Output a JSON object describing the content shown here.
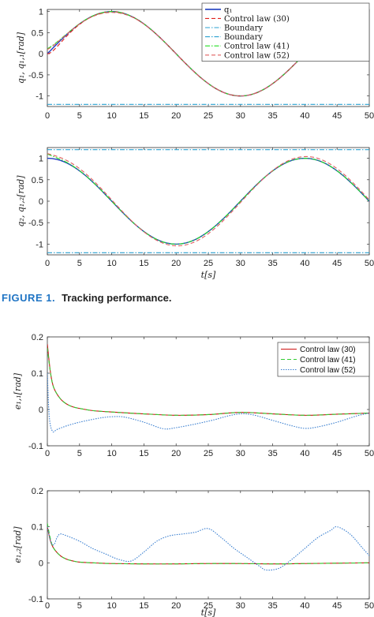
{
  "caption": {
    "number": "FIGURE 1.",
    "text": "Tracking performance."
  },
  "colors": {
    "desired": "#1f3fbf",
    "law30": "#e0201c",
    "boundary": "#2aa0d0",
    "law41": "#22dd22",
    "law52": "#e06060",
    "err30": "#cc1111",
    "err41": "#33cc33",
    "err52": "#3a7fd0"
  },
  "chart_data": [
    {
      "type": "line",
      "xlabel": "",
      "ylabel": "q₁, q₁,₁[rad]",
      "xlim": [
        0,
        50
      ],
      "ylim": [
        -1.25,
        1.05
      ],
      "xticks": [
        "0",
        "5",
        "10",
        "15",
        "20",
        "25",
        "30",
        "35",
        "40",
        "45",
        "50"
      ],
      "yticks": [
        "1",
        "0.5",
        "0",
        "-0.5",
        "-1"
      ],
      "yticks_values": [
        1,
        0.5,
        0,
        -0.5,
        -1
      ],
      "legend": [
        "q₁",
        "Control law (30)",
        "Boundary",
        "Boundary",
        "Control law (41)",
        "Control law (52)"
      ],
      "legend_position": "top-right",
      "series": [
        {
          "name": "q₁",
          "style": "solid",
          "color_key": "desired",
          "function": "sin(pi*t/20)"
        },
        {
          "name": "Control law (30)",
          "style": "dashed",
          "color_key": "law30",
          "function": "sin(pi*t/20), start 0.0"
        },
        {
          "name": "Boundary",
          "style": "dashdot",
          "color_key": "boundary",
          "x": [
            0,
            50
          ],
          "y": [
            -1.2,
            -1.2
          ]
        },
        {
          "name": "Boundary",
          "style": "dashdot",
          "color_key": "boundary",
          "x": [
            0,
            50
          ],
          "y": [
            1.2,
            1.2
          ]
        },
        {
          "name": "Control law (41)",
          "style": "dashdot",
          "color_key": "law41",
          "function": "sin(pi*t/20), start 0.12"
        },
        {
          "name": "Control law (52)",
          "style": "dashed",
          "color_key": "law52",
          "function": "sin(pi*t/20), start 0.1"
        }
      ]
    },
    {
      "type": "line",
      "xlabel": "t[s]",
      "ylabel": "q₂, q₁,₂[rad]",
      "xlim": [
        0,
        50
      ],
      "ylim": [
        -1.25,
        1.25
      ],
      "xticks": [
        "0",
        "5",
        "10",
        "15",
        "20",
        "25",
        "30",
        "35",
        "40",
        "45",
        "50"
      ],
      "yticks": [
        "1",
        "0.5",
        "0",
        "-0.5",
        "-1"
      ],
      "yticks_values": [
        1,
        0.5,
        0,
        -0.5,
        -1
      ],
      "series": [
        {
          "name": "q₂",
          "style": "solid",
          "color_key": "desired",
          "function": "cos(pi*t/20)"
        },
        {
          "name": "Boundary",
          "style": "dashdot",
          "color_key": "boundary",
          "x": [
            0,
            50
          ],
          "y": [
            1.2,
            1.2
          ]
        },
        {
          "name": "Boundary",
          "style": "dashdot",
          "color_key": "boundary",
          "x": [
            0,
            50
          ],
          "y": [
            -1.2,
            -1.2
          ]
        },
        {
          "name": "Control law (41)",
          "style": "dashdot",
          "color_key": "law41",
          "function": "cos(pi*t/20), start 1.1"
        },
        {
          "name": "Control law (52)",
          "style": "dashed",
          "color_key": "law52",
          "function": "cos(pi*t/20) with ~0.07 deviation near peaks"
        }
      ]
    },
    {
      "type": "line",
      "xlabel": "",
      "ylabel": "e₁,₁[rad]",
      "xlim": [
        0,
        50
      ],
      "ylim": [
        -0.1,
        0.2
      ],
      "xticks": [
        "0",
        "5",
        "10",
        "15",
        "20",
        "25",
        "30",
        "35",
        "40",
        "45",
        "50"
      ],
      "yticks": [
        "0.2",
        "0.1",
        "0",
        "-0.1"
      ],
      "yticks_values": [
        0.2,
        0.1,
        0,
        -0.1
      ],
      "legend": [
        "Control law (30)",
        "Control law (41)",
        "Control law (52)"
      ],
      "legend_position": "top-right",
      "series": [
        {
          "name": "Control law (30)",
          "style": "solid",
          "color_key": "err30",
          "x": [
            0,
            0.5,
            1,
            2,
            3,
            4,
            5,
            7,
            10,
            15,
            20,
            25,
            30,
            35,
            40,
            45,
            50
          ],
          "y": [
            0.18,
            0.1,
            0.06,
            0.03,
            0.015,
            0.007,
            0.003,
            -0.003,
            -0.007,
            -0.012,
            -0.016,
            -0.014,
            -0.008,
            -0.012,
            -0.016,
            -0.013,
            -0.01
          ]
        },
        {
          "name": "Control law (41)",
          "style": "dashed",
          "color_key": "err41",
          "x": [
            0,
            0.5,
            1,
            2,
            3,
            4,
            5,
            7,
            10,
            15,
            20,
            25,
            30,
            35,
            40,
            45,
            50
          ],
          "y": [
            0.17,
            0.1,
            0.06,
            0.03,
            0.015,
            0.007,
            0.003,
            -0.003,
            -0.007,
            -0.012,
            -0.016,
            -0.014,
            -0.008,
            -0.012,
            -0.016,
            -0.013,
            -0.01
          ]
        },
        {
          "name": "Control law (52)",
          "style": "dotted",
          "color_key": "err52",
          "x": [
            0,
            0.3,
            0.8,
            1.5,
            3,
            5,
            8,
            10,
            12,
            15,
            18,
            20,
            23,
            26,
            28,
            30,
            32,
            35,
            38,
            40,
            42,
            45,
            48,
            50
          ],
          "y": [
            0.1,
            -0.02,
            -0.06,
            -0.055,
            -0.045,
            -0.035,
            -0.024,
            -0.02,
            -0.021,
            -0.035,
            -0.053,
            -0.05,
            -0.04,
            -0.028,
            -0.018,
            -0.012,
            -0.015,
            -0.03,
            -0.045,
            -0.052,
            -0.048,
            -0.035,
            -0.018,
            -0.01
          ]
        }
      ]
    },
    {
      "type": "line",
      "xlabel": "t[s]",
      "ylabel": "e₁,₂[rad]",
      "xlim": [
        0,
        50
      ],
      "ylim": [
        -0.1,
        0.2
      ],
      "xticks": [
        "0",
        "5",
        "10",
        "15",
        "20",
        "25",
        "30",
        "35",
        "40",
        "45",
        "50"
      ],
      "yticks": [
        "0.2",
        "0.1",
        "0",
        "-0.1"
      ],
      "yticks_values": [
        0.2,
        0.1,
        0,
        -0.1
      ],
      "series": [
        {
          "name": "Control law (30)",
          "style": "solid",
          "color_key": "err30",
          "x": [
            0,
            0.5,
            1,
            2,
            3,
            4,
            5,
            7,
            10,
            15,
            20,
            25,
            30,
            35,
            40,
            45,
            50
          ],
          "y": [
            0.1,
            0.06,
            0.04,
            0.02,
            0.01,
            0.005,
            0.002,
            0.0,
            -0.002,
            -0.003,
            -0.003,
            -0.002,
            -0.002,
            -0.003,
            -0.002,
            -0.001,
            0.0
          ]
        },
        {
          "name": "Control law (41)",
          "style": "dashed",
          "color_key": "err41",
          "x": [
            0,
            0.5,
            1,
            2,
            3,
            4,
            5,
            7,
            10,
            15,
            20,
            25,
            30,
            35,
            40,
            45,
            50
          ],
          "y": [
            0.11,
            0.065,
            0.04,
            0.02,
            0.01,
            0.005,
            0.002,
            0.0,
            -0.002,
            -0.003,
            -0.003,
            -0.002,
            -0.002,
            -0.003,
            -0.002,
            -0.001,
            0.0
          ]
        },
        {
          "name": "Control law (52)",
          "style": "dotted",
          "color_key": "err52",
          "x": [
            0,
            0.5,
            1,
            1.5,
            2,
            3,
            5,
            7,
            9,
            11,
            13,
            15,
            17,
            19,
            21,
            23,
            25,
            27,
            29,
            31,
            33,
            34,
            36,
            38,
            40,
            42,
            44,
            45,
            47,
            49,
            50
          ],
          "y": [
            0.1,
            0.06,
            0.05,
            0.07,
            0.08,
            0.075,
            0.06,
            0.04,
            0.025,
            0.01,
            0.005,
            0.03,
            0.06,
            0.075,
            0.08,
            0.085,
            0.095,
            0.07,
            0.04,
            0.015,
            -0.01,
            -0.02,
            -0.015,
            0.01,
            0.04,
            0.07,
            0.09,
            0.1,
            0.08,
            0.04,
            0.02
          ]
        }
      ]
    }
  ]
}
